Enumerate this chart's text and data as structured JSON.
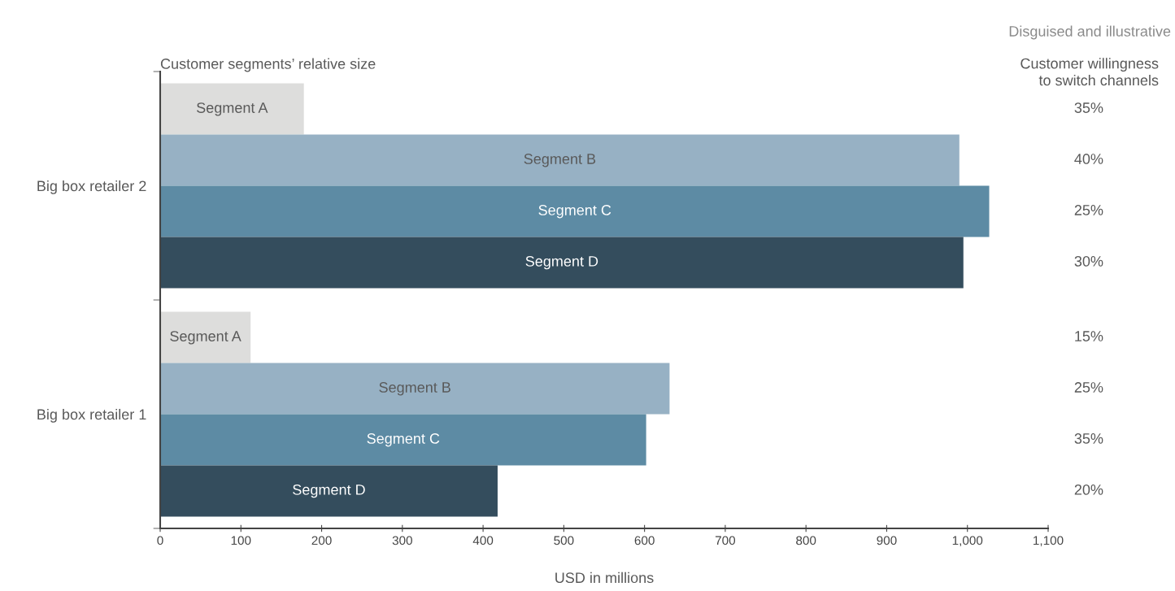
{
  "chart_data": [
    {
      "type": "bar",
      "orientation": "horizontal",
      "title": "Customer segments’ relative size",
      "xlabel": "USD in millions",
      "categories": [
        "Big box retailer 2",
        "Big box retailer 1"
      ],
      "series": [
        {
          "name": "Segment A",
          "color": "#dddddc",
          "values": [
            178,
            112
          ]
        },
        {
          "name": "Segment B",
          "color": "#97b1c4",
          "values": [
            990,
            631
          ]
        },
        {
          "name": "Segment C",
          "color": "#5d8ba4",
          "values": [
            1027,
            602
          ]
        },
        {
          "name": "Segment D",
          "color": "#344d5d",
          "values": [
            995,
            418
          ]
        }
      ],
      "xlim": [
        0,
        1100
      ],
      "xticks": [
        0,
        100,
        200,
        300,
        400,
        500,
        600,
        700,
        800,
        900,
        {
          "value": 1000,
          "label": "1,000"
        },
        {
          "value": 1100,
          "label": "1,100"
        }
      ],
      "grid": false,
      "legend": false,
      "annotations": [
        "Disguised and illustrative"
      ]
    },
    {
      "type": "other",
      "title": "Customer willingness\nto switch channels",
      "annotations": [
        "35%",
        "40%",
        "25%",
        "30%",
        "15%",
        "25%",
        "35%",
        "20%"
      ]
    }
  ]
}
